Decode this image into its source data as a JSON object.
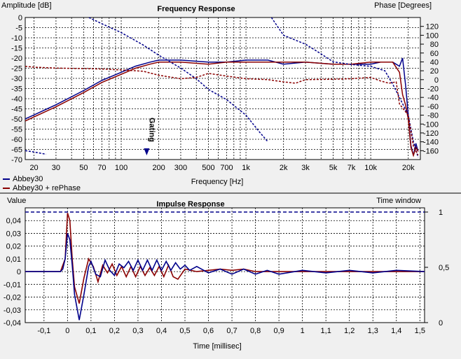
{
  "colors": {
    "blue": "#00008b",
    "red": "#8b0000",
    "background": "#f0f0f0",
    "plot_bg": "#ffffff"
  },
  "legend": [
    {
      "name": "Abbey30",
      "color": "#00008b"
    },
    {
      "name": "Abbey30 + rePhase",
      "color": "#8b0000"
    }
  ],
  "chart_data": [
    {
      "type": "line",
      "title": "Frequency Response",
      "xlabel": "Frequency [Hz]",
      "ylabel": "Amplitude [dB]",
      "y2label": "Phase [Degrees]",
      "xscale": "log",
      "xlim": [
        17,
        25000
      ],
      "ylim": [
        -70,
        0
      ],
      "y2lim": [
        -180,
        140
      ],
      "xticks": [
        {
          "v": 20,
          "t": "20"
        },
        {
          "v": 30,
          "t": "30"
        },
        {
          "v": 50,
          "t": "50"
        },
        {
          "v": 70,
          "t": "70"
        },
        {
          "v": 100,
          "t": "100"
        },
        {
          "v": 200,
          "t": "200"
        },
        {
          "v": 300,
          "t": "300"
        },
        {
          "v": 500,
          "t": "500"
        },
        {
          "v": 700,
          "t": "700"
        },
        {
          "v": 1000,
          "t": "1k"
        },
        {
          "v": 2000,
          "t": "2k"
        },
        {
          "v": 3000,
          "t": "3k"
        },
        {
          "v": 5000,
          "t": "5k"
        },
        {
          "v": 7000,
          "t": "7k"
        },
        {
          "v": 10000,
          "t": "10k"
        },
        {
          "v": 20000,
          "t": "20k"
        }
      ],
      "yticks": [
        "0",
        "-5",
        "-10",
        "-15",
        "-20",
        "-25",
        "-30",
        "-35",
        "-40",
        "-45",
        "-50",
        "-55",
        "-60",
        "-65",
        "-70"
      ],
      "y2ticks": [
        "120",
        "100",
        "80",
        "60",
        "40",
        "20",
        "0",
        "-20",
        "-40",
        "-60",
        "-80",
        "-100",
        "-120",
        "-140",
        "-160"
      ],
      "annotation": {
        "text": "Gating",
        "x": 160
      },
      "grid": true,
      "series": [
        {
          "name": "Abbey30",
          "kind": "amplitude",
          "style": "solid",
          "points": [
            [
              17,
              -50
            ],
            [
              20,
              -48
            ],
            [
              30,
              -43
            ],
            [
              50,
              -36
            ],
            [
              70,
              -31
            ],
            [
              100,
              -27
            ],
            [
              130,
              -24
            ],
            [
              170,
              -22
            ],
            [
              200,
              -21
            ],
            [
              300,
              -21
            ],
            [
              500,
              -22
            ],
            [
              700,
              -22
            ],
            [
              1000,
              -21
            ],
            [
              1500,
              -21
            ],
            [
              2000,
              -23
            ],
            [
              3000,
              -22
            ],
            [
              5000,
              -23
            ],
            [
              7000,
              -23
            ],
            [
              10000,
              -23
            ],
            [
              12000,
              -22
            ],
            [
              15000,
              -22
            ],
            [
              17000,
              -24
            ],
            [
              18000,
              -20
            ],
            [
              19000,
              -33
            ],
            [
              20000,
              -48
            ],
            [
              21000,
              -63
            ],
            [
              22000,
              -68
            ],
            [
              23000,
              -62
            ],
            [
              24000,
              -66
            ]
          ]
        },
        {
          "name": "Abbey30 + rePhase",
          "kind": "amplitude",
          "style": "solid",
          "points": [
            [
              17,
              -51
            ],
            [
              20,
              -49
            ],
            [
              30,
              -44
            ],
            [
              50,
              -37
            ],
            [
              70,
              -32
            ],
            [
              100,
              -28
            ],
            [
              130,
              -25
            ],
            [
              170,
              -23
            ],
            [
              200,
              -22
            ],
            [
              300,
              -22
            ],
            [
              500,
              -23
            ],
            [
              700,
              -22
            ],
            [
              1000,
              -22
            ],
            [
              1500,
              -22
            ],
            [
              2000,
              -22
            ],
            [
              3000,
              -22
            ],
            [
              5000,
              -23
            ],
            [
              7000,
              -23
            ],
            [
              10000,
              -22
            ],
            [
              12000,
              -22
            ],
            [
              15000,
              -22
            ],
            [
              17000,
              -27
            ],
            [
              18000,
              -38
            ],
            [
              19000,
              -43
            ],
            [
              20000,
              -50
            ],
            [
              21000,
              -64
            ],
            [
              22000,
              -68
            ],
            [
              23000,
              -64
            ],
            [
              24000,
              -66
            ]
          ]
        },
        {
          "name": "Abbey30",
          "kind": "phase",
          "style": "dashed",
          "points": [
            [
              17,
              -160
            ],
            [
              20,
              -163
            ],
            [
              25,
              -168
            ]
          ]
        },
        {
          "name": "Abbey30",
          "kind": "phase",
          "style": "dashed",
          "points": [
            [
              55,
              140
            ],
            [
              70,
              126
            ],
            [
              100,
              106
            ],
            [
              150,
              78
            ],
            [
              200,
              55
            ],
            [
              300,
              26
            ],
            [
              400,
              2
            ],
            [
              500,
              -22
            ],
            [
              700,
              -45
            ],
            [
              1000,
              -80
            ],
            [
              1300,
              -120
            ],
            [
              1500,
              -140
            ]
          ]
        },
        {
          "name": "Abbey30",
          "kind": "phase",
          "style": "dashed",
          "points": [
            [
              1600,
              140
            ],
            [
              2000,
              100
            ],
            [
              3000,
              80
            ],
            [
              4000,
              58
            ],
            [
              5000,
              40
            ],
            [
              7000,
              34
            ],
            [
              10000,
              30
            ],
            [
              13000,
              20
            ],
            [
              15000,
              -10
            ],
            [
              17000,
              -40
            ],
            [
              20000,
              -80
            ],
            [
              22000,
              -140
            ],
            [
              24000,
              -175
            ]
          ]
        },
        {
          "name": "Abbey30 + rePhase",
          "kind": "phase",
          "style": "dashed",
          "points": [
            [
              17,
              30
            ],
            [
              20,
              28
            ],
            [
              30,
              26
            ],
            [
              50,
              25
            ],
            [
              70,
              24
            ],
            [
              100,
              22
            ],
            [
              150,
              19
            ],
            [
              200,
              10
            ],
            [
              300,
              2
            ],
            [
              400,
              5
            ],
            [
              500,
              14
            ],
            [
              700,
              8
            ],
            [
              1000,
              2
            ],
            [
              1500,
              0
            ],
            [
              2000,
              -5
            ],
            [
              2500,
              -8
            ],
            [
              3000,
              0
            ],
            [
              5000,
              1
            ],
            [
              7000,
              2
            ],
            [
              10000,
              5
            ],
            [
              12000,
              -3
            ],
            [
              14000,
              -8
            ],
            [
              16000,
              -5
            ],
            [
              17000,
              -55
            ],
            [
              20000,
              -80
            ],
            [
              22000,
              -150
            ],
            [
              24000,
              -170
            ]
          ]
        }
      ]
    },
    {
      "type": "line",
      "title": "Impulse Response",
      "xlabel": "Time [millisec]",
      "ylabel": "Value",
      "y2label": "Time window",
      "xlim": [
        -0.18,
        1.52
      ],
      "ylim": [
        -0.04,
        0.05
      ],
      "y2lim": [
        0,
        1
      ],
      "xticks": [
        "-0,1",
        "0",
        "0,1",
        "0,2",
        "0,3",
        "0,4",
        "0,5",
        "0,6",
        "0,7",
        "0,8",
        "0,9",
        "1",
        "1,1",
        "1,2",
        "1,3",
        "1,4",
        "1,5"
      ],
      "yticks": [
        "0,04",
        "0,03",
        "0,02",
        "0,01",
        "0",
        "-0,01",
        "-0,02",
        "-0,03",
        "-0,04"
      ],
      "y2ticks": [
        "1",
        "0,5",
        "0"
      ],
      "grid": true,
      "window": {
        "value": 1
      },
      "series": [
        {
          "name": "Abbey30",
          "kind": "impulse",
          "points": [
            [
              -0.18,
              0
            ],
            [
              -0.03,
              0
            ],
            [
              -0.02,
              0.002
            ],
            [
              -0.01,
              0.01
            ],
            [
              0,
              0.03
            ],
            [
              0.01,
              0.025
            ],
            [
              0.02,
              0.005
            ],
            [
              0.03,
              -0.018
            ],
            [
              0.05,
              -0.038
            ],
            [
              0.07,
              -0.018
            ],
            [
              0.09,
              0.004
            ],
            [
              0.1,
              0.008
            ],
            [
              0.12,
              -0.002
            ],
            [
              0.14,
              -0.004
            ],
            [
              0.16,
              0.009
            ],
            [
              0.18,
              0.001
            ],
            [
              0.2,
              -0.003
            ],
            [
              0.22,
              0.006
            ],
            [
              0.24,
              0.003
            ],
            [
              0.26,
              0.008
            ],
            [
              0.28,
              0.001
            ],
            [
              0.3,
              0.009
            ],
            [
              0.32,
              0.001
            ],
            [
              0.34,
              0.009
            ],
            [
              0.36,
              0.001
            ],
            [
              0.38,
              0.009
            ],
            [
              0.4,
              0.001
            ],
            [
              0.42,
              0.008
            ],
            [
              0.44,
              0.001
            ],
            [
              0.46,
              0.007
            ],
            [
              0.48,
              0.002
            ],
            [
              0.5,
              0.005
            ],
            [
              0.52,
              0.001
            ],
            [
              0.55,
              0.004
            ],
            [
              0.6,
              -0.001
            ],
            [
              0.65,
              0.002
            ],
            [
              0.7,
              -0.002
            ],
            [
              0.75,
              0.002
            ],
            [
              0.8,
              -0.002
            ],
            [
              0.85,
              0.001
            ],
            [
              0.9,
              -0.002
            ],
            [
              1.0,
              0.001
            ],
            [
              1.1,
              -0.001
            ],
            [
              1.2,
              0.001
            ],
            [
              1.3,
              -0.001
            ],
            [
              1.4,
              0.001
            ],
            [
              1.52,
              0
            ]
          ]
        },
        {
          "name": "Abbey30 + rePhase",
          "kind": "impulse",
          "points": [
            [
              -0.18,
              0
            ],
            [
              -0.03,
              0
            ],
            [
              -0.01,
              0.01
            ],
            [
              0,
              0.046
            ],
            [
              0.01,
              0.04
            ],
            [
              0.02,
              0.01
            ],
            [
              0.03,
              -0.012
            ],
            [
              0.05,
              -0.025
            ],
            [
              0.07,
              -0.005
            ],
            [
              0.09,
              0.01
            ],
            [
              0.11,
              0.004
            ],
            [
              0.13,
              -0.008
            ],
            [
              0.15,
              0.005
            ],
            [
              0.17,
              -0.001
            ],
            [
              0.19,
              0.006
            ],
            [
              0.21,
              -0.003
            ],
            [
              0.23,
              0.004
            ],
            [
              0.25,
              -0.004
            ],
            [
              0.27,
              0.004
            ],
            [
              0.29,
              -0.004
            ],
            [
              0.31,
              0.004
            ],
            [
              0.33,
              -0.003
            ],
            [
              0.35,
              0.003
            ],
            [
              0.37,
              -0.003
            ],
            [
              0.39,
              0.004
            ],
            [
              0.41,
              -0.004
            ],
            [
              0.43,
              0.005
            ],
            [
              0.45,
              -0.004
            ],
            [
              0.47,
              -0.006
            ],
            [
              0.5,
              0.002
            ],
            [
              0.55,
              0.0
            ],
            [
              0.6,
              0.001
            ],
            [
              0.65,
              0.002
            ],
            [
              0.7,
              0.001
            ],
            [
              0.75,
              0.002
            ],
            [
              0.8,
              0.0
            ],
            [
              0.9,
              0.0
            ],
            [
              1.0,
              0.0
            ],
            [
              1.1,
              0.0
            ],
            [
              1.2,
              0.0
            ],
            [
              1.3,
              0.0
            ],
            [
              1.4,
              0.0
            ],
            [
              1.52,
              0
            ]
          ]
        }
      ]
    }
  ]
}
